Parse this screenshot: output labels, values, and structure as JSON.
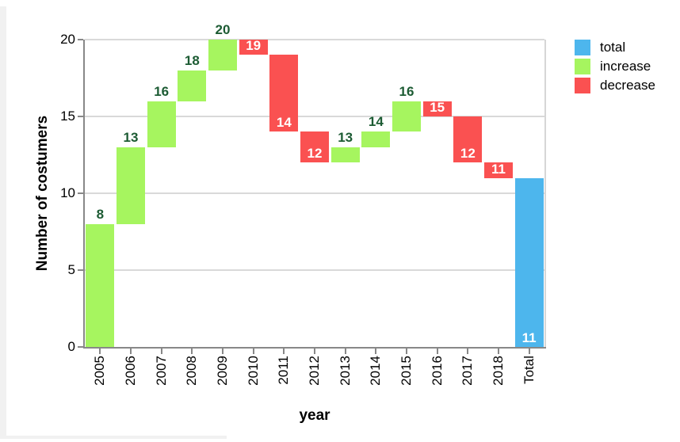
{
  "page": {
    "background": "#ffffff"
  },
  "chart_data": {
    "type": "bar",
    "subtype": "waterfall",
    "title": "",
    "xlabel": "year",
    "ylabel": "Number of costumers",
    "ylim": [
      0,
      20
    ],
    "yticks": [
      0,
      5,
      10,
      15,
      20
    ],
    "ytick_labels": [
      "0",
      "5",
      "10",
      "15",
      "20"
    ],
    "grid": true,
    "categories": [
      "2005",
      "2006",
      "2007",
      "2008",
      "2009",
      "2010",
      "2011",
      "2012",
      "2013",
      "2014",
      "2015",
      "2016",
      "2017",
      "2018",
      "Total"
    ],
    "steps": [
      {
        "category": "2005",
        "start": 0,
        "end": 8,
        "kind": "increase",
        "label": "8"
      },
      {
        "category": "2006",
        "start": 8,
        "end": 13,
        "kind": "increase",
        "label": "13"
      },
      {
        "category": "2007",
        "start": 13,
        "end": 16,
        "kind": "increase",
        "label": "16"
      },
      {
        "category": "2008",
        "start": 16,
        "end": 18,
        "kind": "increase",
        "label": "18"
      },
      {
        "category": "2009",
        "start": 18,
        "end": 20,
        "kind": "increase",
        "label": "20"
      },
      {
        "category": "2010",
        "start": 20,
        "end": 19,
        "kind": "decrease",
        "label": "19"
      },
      {
        "category": "2011",
        "start": 19,
        "end": 14,
        "kind": "decrease",
        "label": "14"
      },
      {
        "category": "2012",
        "start": 14,
        "end": 12,
        "kind": "decrease",
        "label": "12"
      },
      {
        "category": "2013",
        "start": 12,
        "end": 13,
        "kind": "increase",
        "label": "13"
      },
      {
        "category": "2014",
        "start": 13,
        "end": 14,
        "kind": "increase",
        "label": "14"
      },
      {
        "category": "2015",
        "start": 14,
        "end": 16,
        "kind": "increase",
        "label": "16"
      },
      {
        "category": "2016",
        "start": 16,
        "end": 15,
        "kind": "decrease",
        "label": "15"
      },
      {
        "category": "2017",
        "start": 15,
        "end": 12,
        "kind": "decrease",
        "label": "12"
      },
      {
        "category": "2018",
        "start": 12,
        "end": 11,
        "kind": "decrease",
        "label": "11"
      },
      {
        "category": "Total",
        "start": 0,
        "end": 11,
        "kind": "total",
        "label": "11"
      }
    ],
    "colors": {
      "total": "#4db6ed",
      "increase": "#a6f55f",
      "decrease": "#fa5151",
      "increase_label": "#1c5b33",
      "decrease_label": "#ffffff",
      "total_label": "#ffffff",
      "axis": "#888888",
      "grid": "#d9d9d9"
    },
    "legend": {
      "position": "right",
      "items": [
        {
          "label": "total",
          "color": "#4db6ed"
        },
        {
          "label": "increase",
          "color": "#a6f55f"
        },
        {
          "label": "decrease",
          "color": "#fa5151"
        }
      ]
    }
  }
}
